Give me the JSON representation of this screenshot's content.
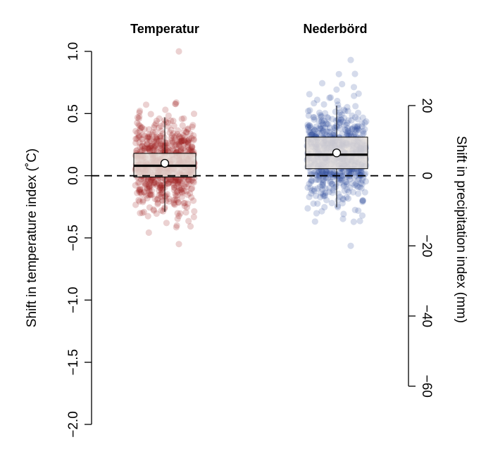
{
  "chart_data": {
    "type": "scatter",
    "subtype": "jittered strip plot with boxplot, dual y-axes",
    "groups": [
      {
        "title": "Temperatur",
        "axis": "left",
        "point_color": "#9b1b1b",
        "box": {
          "q1": -0.01,
          "median": 0.08,
          "q3": 0.18,
          "whisker_low": -0.29,
          "whisker_high": 0.47,
          "mean": 0.1
        },
        "points_summary": {
          "count": 700,
          "center": 0.08,
          "spread": 0.18,
          "min": -0.55,
          "max": 1.0
        }
      },
      {
        "title": "Nederbörd",
        "axis": "right",
        "point_color": "#2b4a9c",
        "box": {
          "q1": 2.0,
          "median": 6.0,
          "q3": 11.0,
          "whisker_low": -9.0,
          "whisker_high": 20.0,
          "mean": 6.5
        },
        "points_summary": {
          "count": 700,
          "center": 6.0,
          "spread": 7.0,
          "min": -20.0,
          "max": 33.0
        }
      }
    ],
    "left_axis": {
      "label": "Shift in temperature index (˚C)",
      "ylim": [
        -2.0,
        1.0
      ],
      "ticks": [
        1.0,
        0.5,
        0.0,
        -0.5,
        -1.0,
        -1.5,
        -2.0
      ],
      "tick_labels": [
        "1.0",
        "0.5",
        "0.0",
        "−0.5",
        "−1.0",
        "−1.5",
        "−2.0"
      ]
    },
    "right_axis": {
      "label": "Shift in precipitation index (mm)",
      "ylim": [
        -60,
        20
      ],
      "ticks": [
        20,
        0,
        -20,
        -40,
        -60
      ],
      "tick_labels": [
        "20",
        "0",
        "−20",
        "−40",
        "−60"
      ]
    },
    "reference_line": {
      "value": 0,
      "style": "dashed"
    },
    "box_fill": "#e8e0da",
    "grid": false,
    "legend": "none"
  }
}
